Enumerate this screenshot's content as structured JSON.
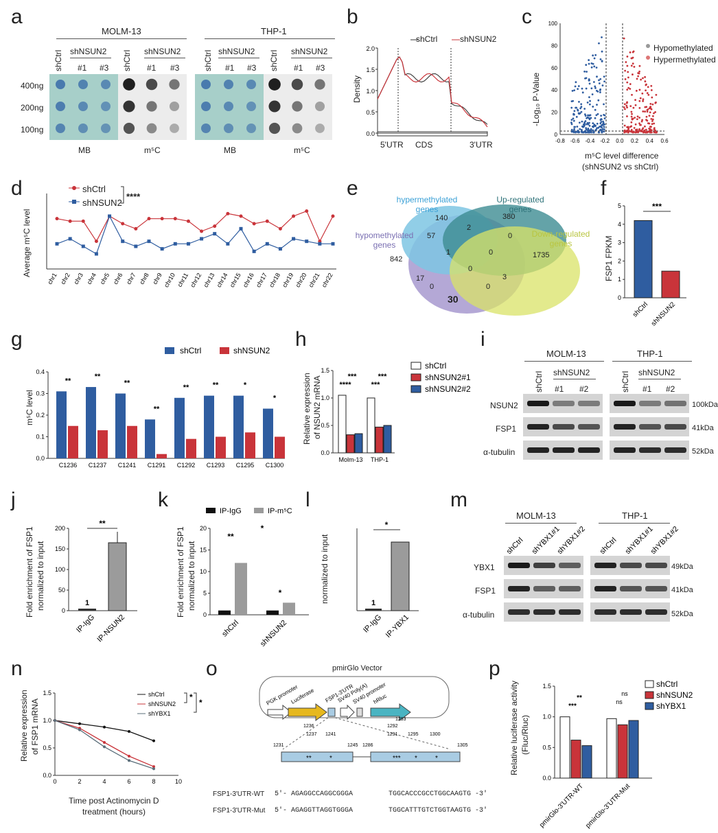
{
  "panels": {
    "a": {
      "letter": "a",
      "groups": [
        "MOLM-13",
        "THP-1"
      ],
      "shrna": "shNSUN2",
      "sub": [
        "#1",
        "#3"
      ],
      "ctrl": "shCtrl",
      "rows": [
        "400ng",
        "200ng",
        "100ng"
      ],
      "stains": [
        "MB",
        "m⁵C",
        "MB",
        "m⁵C"
      ]
    },
    "b": {
      "letter": "b",
      "legend": [
        "shCtrl",
        "shNSUN2"
      ],
      "ylabel": "Density",
      "yticks": [
        "2.0",
        "1.5",
        "1.0",
        "0.5",
        "0.0"
      ],
      "regions": [
        "5'UTR",
        "CDS",
        "3'UTR"
      ]
    },
    "c": {
      "letter": "c",
      "ylabel": "-Log₁₀ P-Value",
      "yticks": [
        "100",
        "80",
        "60",
        "40",
        "20",
        "0"
      ],
      "xticks": [
        "-0.8",
        "-0.6",
        "-0.4",
        "-0.2",
        "0.0",
        "0.2",
        "0.4",
        "0.6"
      ],
      "xlabel1": "m⁵C level difference",
      "xlabel2": "(shNSUN2 vs shCtrl)",
      "legend": [
        "Hypomethylated",
        "Hypermethylated"
      ]
    },
    "d": {
      "letter": "d",
      "ylabel": "Average m⁵C level",
      "sig": "****",
      "legend": [
        "shCtrl",
        "shNSUN2"
      ]
    },
    "e": {
      "letter": "e",
      "sets": [
        "hypermethylated genes",
        "Up-regulated genes",
        "hypomethylated genes",
        "Down-regulated genes"
      ],
      "counts": [
        "140",
        "380",
        "842",
        "1735",
        "57",
        "2",
        "0",
        "1",
        "0",
        "17",
        "0",
        "0",
        "3",
        "0",
        "30"
      ]
    },
    "f": {
      "letter": "f",
      "ylabel": "FSP1 FPKM",
      "sig": "***",
      "yticks": [
        "5",
        "4",
        "3",
        "2",
        "1",
        "0"
      ],
      "cats": [
        "shCtrl",
        "shNSUN2"
      ]
    },
    "g": {
      "letter": "g",
      "ylabel": "m⁵C level",
      "legend": [
        "shCtrl",
        "shNSUN2"
      ],
      "yticks": [
        "0.4",
        "0.3",
        "0.2",
        "0.1",
        "0.0"
      ],
      "sigs": [
        "**",
        "**",
        "**",
        "**",
        "**",
        "**",
        "*",
        "*"
      ]
    },
    "h": {
      "letter": "h",
      "ylabel1": "Relative expression",
      "ylabel2": "of NSUN2 mRNA",
      "legend": [
        "shCtrl",
        "shNSUN2#1",
        "shNSUN2#2"
      ],
      "yticks": [
        "1.5",
        "1.0",
        "0.5",
        "0.0"
      ],
      "sigs": [
        "****",
        "***",
        "***",
        "***"
      ]
    },
    "i": {
      "letter": "i",
      "groups": [
        "MOLM-13",
        "THP-1"
      ],
      "shrna": "shNSUN2",
      "ctrl": "shCtrl",
      "sub": [
        "#1",
        "#2"
      ],
      "rows": [
        "NSUN2",
        "FSP1",
        "α-tubulin"
      ],
      "sizes": [
        "100kDa",
        "41kDa",
        "52kDa"
      ]
    },
    "j": {
      "letter": "j",
      "ylabel1": "Fold enrichment of FSP1",
      "ylabel2": "normalized to input",
      "yticks": [
        "200",
        "150",
        "100",
        "50",
        "0"
      ],
      "cats": [
        "IP-IgG",
        "IP-NSUN2"
      ],
      "sig": "**",
      "one": "1"
    },
    "k": {
      "letter": "k",
      "ylabel1": "Fold enrichment of FSP1",
      "ylabel2": "normalized to input",
      "legend": [
        "IP-IgG",
        "IP-m⁵C"
      ],
      "yticks": [
        "20",
        "15",
        "10",
        "5",
        "0"
      ],
      "cats": [
        "shCtrl",
        "shNSUN2"
      ],
      "sigs": [
        "**",
        "*",
        "*"
      ]
    },
    "l": {
      "letter": "l",
      "ylabel": "normalized to input",
      "cats": [
        "IP-IgG",
        "IP-YBX1"
      ],
      "sig": "*",
      "one": "1"
    },
    "m": {
      "letter": "m",
      "groups": [
        "MOLM-13",
        "THP-1"
      ],
      "lanes": [
        "shCtrl",
        "shYBX1#1",
        "shYBX1#2"
      ],
      "rows": [
        "YBX1",
        "FSP1",
        "α-tubulin"
      ],
      "sizes": [
        "49kDa",
        "41kDa",
        "52kDa"
      ]
    },
    "n": {
      "letter": "n",
      "ylabel1": "Relative expression",
      "ylabel2": "of FSP1 mRNA",
      "xlabel1": "Time post Actinomycin D",
      "xlabel2": "treatment (hours)",
      "legend": [
        "shCtrl",
        "shNSUN2",
        "shYBX1"
      ],
      "yticks": [
        "1.5",
        "1.0",
        "0.5",
        "0.0"
      ],
      "xticks": [
        "0",
        "2",
        "4",
        "6",
        "8",
        "10"
      ]
    },
    "o": {
      "letter": "o",
      "vector": "pmirGlo Vector",
      "elements": [
        "PGK promoter",
        "Luciferase",
        "FSP1-3'UTR",
        "SV40 Poly(A)",
        "SV40 promoter",
        "hRluc"
      ],
      "positions": [
        "1231",
        "1236",
        "1237",
        "1241",
        "1245",
        "1286",
        "1291",
        "1292",
        "1293",
        "1295",
        "1300",
        "1305"
      ],
      "wt_label": "FSP1-3'UTR-WT",
      "mut_label": "FSP1-3'UTR-Mut",
      "wt_seq1": "5'- AGAGGCCAGGCGGGA",
      "wt_seq2": "TGGCACCCGCCTGGCAAGTG -3'",
      "mut_seq1": "5'- AGAGGTTAGGTGGGA",
      "mut_seq2": "TGGCATTTGTCTGGTAAGTG -3'"
    },
    "p": {
      "letter": "p",
      "ylabel1": "Relative luciferase activity",
      "ylabel2": "(Fluc/Rluc)",
      "legend": [
        "shCtrl",
        "shNSUN2",
        "shYBX1"
      ],
      "yticks": [
        "1.5",
        "1.0",
        "0.5",
        "0.0"
      ],
      "cats": [
        "pmirGlo-3'UTR-WT",
        "pmirGlo-3'UTR-Mut"
      ],
      "sigs": [
        "***",
        "**",
        "ns",
        "ns"
      ]
    }
  },
  "chart_data": [
    {
      "panel": "d",
      "type": "line",
      "x": [
        "chr1",
        "chr2",
        "chr3",
        "chr4",
        "chr5",
        "chr6",
        "chr7",
        "chr8",
        "chr9",
        "chr10",
        "chr11",
        "chr12",
        "chr13",
        "chr14",
        "chr15",
        "chr16",
        "chr17",
        "chr18",
        "chr19",
        "chr20",
        "chr21",
        "chr22"
      ],
      "series": [
        {
          "name": "shCtrl",
          "values": [
            0.3,
            0.29,
            0.29,
            0.21,
            0.31,
            0.28,
            0.26,
            0.3,
            0.3,
            0.3,
            0.29,
            0.25,
            0.27,
            0.32,
            0.31,
            0.28,
            0.29,
            0.26,
            0.31,
            0.33,
            0.21,
            0.31
          ]
        },
        {
          "name": "shNSUN2",
          "values": [
            0.2,
            0.22,
            0.19,
            0.16,
            0.31,
            0.21,
            0.19,
            0.21,
            0.18,
            0.2,
            0.2,
            0.22,
            0.24,
            0.2,
            0.26,
            0.17,
            0.2,
            0.18,
            0.22,
            0.21,
            0.2,
            0.2
          ]
        }
      ]
    },
    {
      "panel": "f",
      "type": "bar",
      "categories": [
        "shCtrl",
        "shNSUN2"
      ],
      "values": [
        4.2,
        1.45
      ],
      "ylim": [
        0,
        5
      ]
    },
    {
      "panel": "g",
      "type": "bar",
      "categories": [
        "C1236",
        "C1237",
        "C1241",
        "C1291",
        "C1292",
        "C1293",
        "C1295",
        "C1300"
      ],
      "series": [
        {
          "name": "shCtrl",
          "values": [
            0.31,
            0.33,
            0.3,
            0.18,
            0.28,
            0.29,
            0.29,
            0.23
          ]
        },
        {
          "name": "shNSUN2",
          "values": [
            0.15,
            0.13,
            0.15,
            0.02,
            0.09,
            0.1,
            0.12,
            0.1
          ]
        }
      ],
      "ylim": [
        0,
        0.4
      ]
    },
    {
      "panel": "h",
      "type": "bar",
      "categories": [
        "Molm-13",
        "THP-1"
      ],
      "series": [
        {
          "name": "shCtrl",
          "values": [
            1.05,
            1.0
          ]
        },
        {
          "name": "shNSUN2#1",
          "values": [
            0.33,
            0.47
          ]
        },
        {
          "name": "shNSUN2#2",
          "values": [
            0.35,
            0.5
          ]
        }
      ],
      "ylim": [
        0,
        1.5
      ]
    },
    {
      "panel": "j",
      "type": "bar",
      "categories": [
        "IP-IgG",
        "IP-NSUN2"
      ],
      "values": [
        1,
        165
      ],
      "ylim": [
        0,
        200
      ]
    },
    {
      "panel": "k",
      "type": "bar",
      "categories": [
        "shCtrl",
        "shNSUN2"
      ],
      "series": [
        {
          "name": "IP-IgG",
          "values": [
            1,
            1
          ]
        },
        {
          "name": "IP-m⁵C",
          "values": [
            12,
            2.8
          ]
        }
      ],
      "ylim": [
        0,
        20
      ]
    },
    {
      "panel": "l",
      "type": "bar",
      "categories": [
        "IP-IgG",
        "IP-YBX1"
      ],
      "values": [
        1,
        195
      ]
    },
    {
      "panel": "n",
      "type": "line",
      "x": [
        0,
        2,
        4,
        6,
        8
      ],
      "series": [
        {
          "name": "shCtrl",
          "values": [
            1.0,
            0.94,
            0.88,
            0.8,
            0.63
          ]
        },
        {
          "name": "shNSUN2",
          "values": [
            1.0,
            0.86,
            0.6,
            0.35,
            0.16
          ]
        },
        {
          "name": "shYBX1",
          "values": [
            1.0,
            0.83,
            0.52,
            0.27,
            0.12
          ]
        }
      ],
      "ylim": [
        0,
        1.5
      ],
      "xlim": [
        0,
        10
      ]
    },
    {
      "panel": "p",
      "type": "bar",
      "categories": [
        "pmirGlo-3'UTR-WT",
        "pmirGlo-3'UTR-Mut"
      ],
      "series": [
        {
          "name": "shCtrl",
          "values": [
            1.0,
            0.97
          ]
        },
        {
          "name": "shNSUN2",
          "values": [
            0.62,
            0.87
          ]
        },
        {
          "name": "shYBX1",
          "values": [
            0.53,
            0.94
          ]
        }
      ],
      "ylim": [
        0,
        1.5
      ]
    }
  ]
}
